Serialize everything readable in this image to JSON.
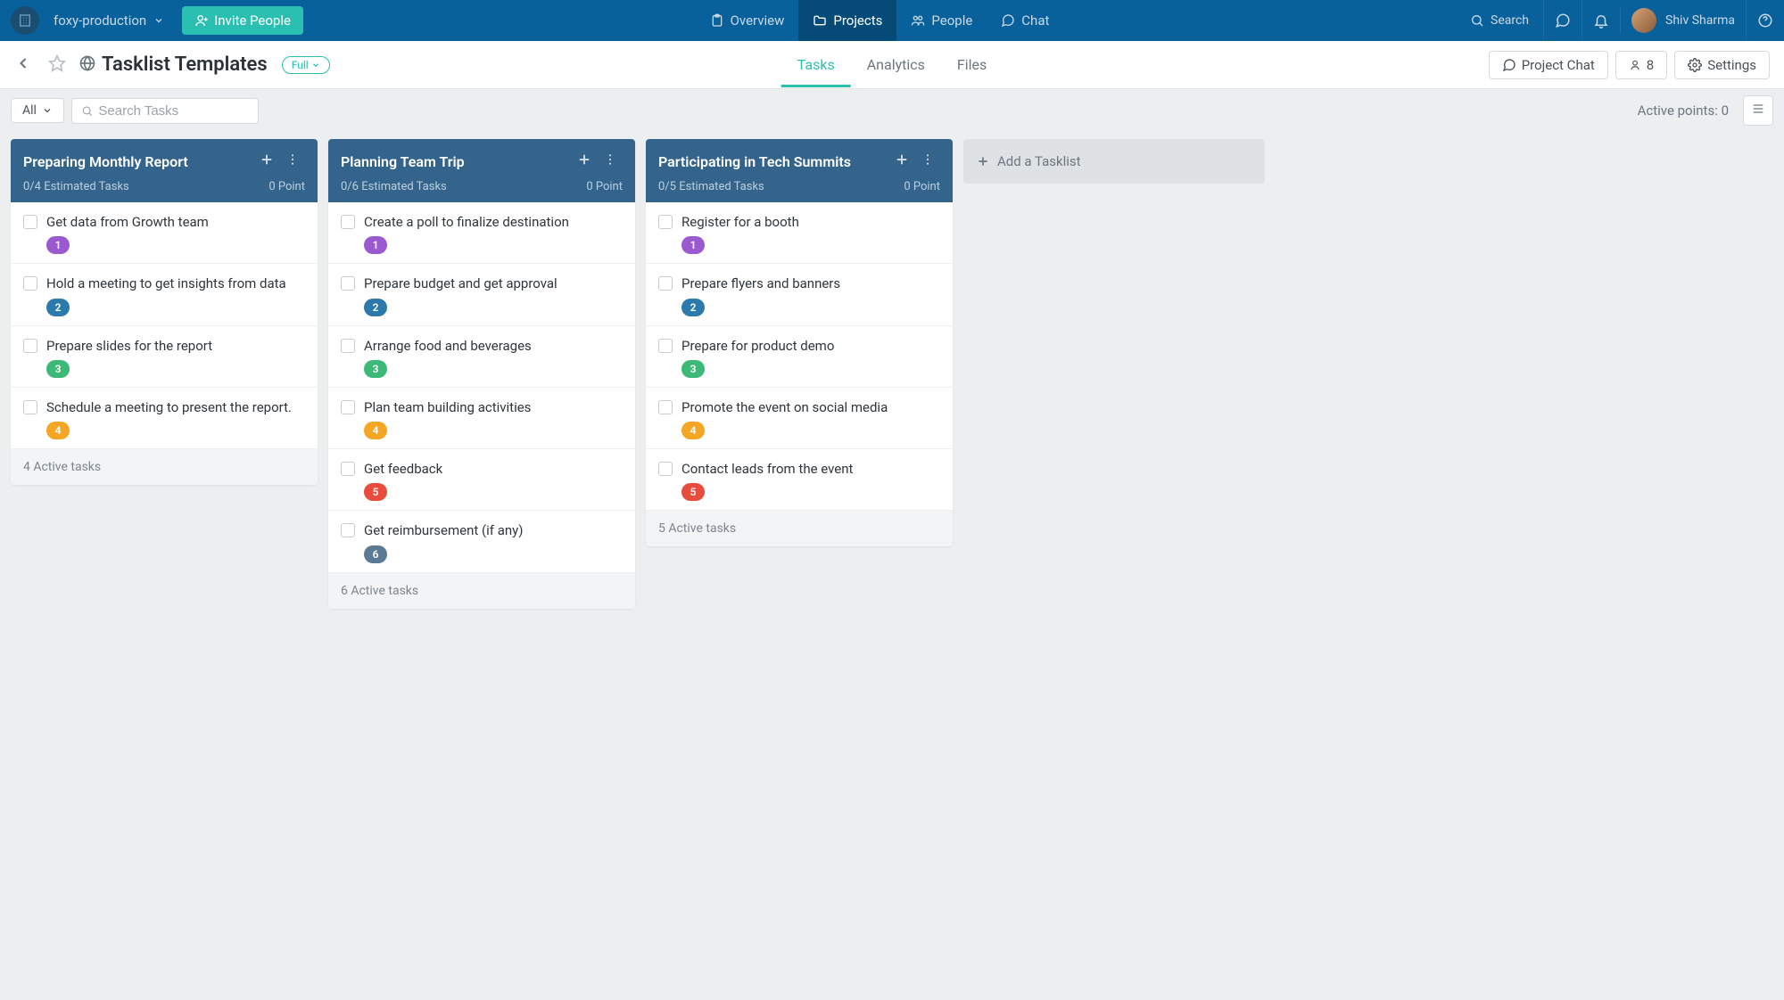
{
  "colors": {
    "topnav": "#09619b",
    "topnav_active": "#064b77",
    "invite": "#2bbfb2",
    "col_header": "#34648b",
    "border": "#d5dade",
    "badge_purple": "#9b59d0",
    "badge_blue": "#2b7aab",
    "badge_green": "#3cb877",
    "badge_orange": "#f5a623",
    "badge_red": "#e74c3c",
    "badge_grey": "#5b7a94"
  },
  "topnav": {
    "workspace": "foxy-production",
    "invite": "Invite People",
    "items": [
      {
        "label": "Overview"
      },
      {
        "label": "Projects",
        "active": true
      },
      {
        "label": "People"
      },
      {
        "label": "Chat"
      }
    ],
    "search": "Search",
    "username": "Shiv Sharma"
  },
  "subheader": {
    "title": "Tasklist Templates",
    "pill": "Full",
    "tabs": [
      {
        "label": "Tasks",
        "active": true
      },
      {
        "label": "Analytics"
      },
      {
        "label": "Files"
      }
    ],
    "project_chat": "Project Chat",
    "members": "8",
    "settings": "Settings"
  },
  "filterbar": {
    "filter": "All",
    "search_placeholder": "Search Tasks",
    "active_points_label": "Active points:",
    "active_points_value": "0"
  },
  "board": {
    "add_tasklist": "Add a Tasklist",
    "columns": [
      {
        "name": "Preparing Monthly Report",
        "estimated": "0/4 Estimated Tasks",
        "points": "0 Point",
        "footer": "4 Active tasks",
        "cards": [
          {
            "title": "Get data from Growth team",
            "badge": "1",
            "color": "#9b59d0"
          },
          {
            "title": "Hold a meeting to get insights from data",
            "badge": "2",
            "color": "#2b7aab"
          },
          {
            "title": "Prepare slides for the report",
            "badge": "3",
            "color": "#3cb877"
          },
          {
            "title": "Schedule a meeting to present the report.",
            "badge": "4",
            "color": "#f5a623"
          }
        ]
      },
      {
        "name": "Planning Team Trip",
        "estimated": "0/6 Estimated Tasks",
        "points": "0 Point",
        "footer": "6 Active tasks",
        "cards": [
          {
            "title": "Create a poll to finalize destination",
            "badge": "1",
            "color": "#9b59d0"
          },
          {
            "title": "Prepare budget and get approval",
            "badge": "2",
            "color": "#2b7aab"
          },
          {
            "title": "Arrange food and beverages",
            "badge": "3",
            "color": "#3cb877"
          },
          {
            "title": "Plan team building activities",
            "badge": "4",
            "color": "#f5a623"
          },
          {
            "title": "Get feedback",
            "badge": "5",
            "color": "#e74c3c"
          },
          {
            "title": "Get reimbursement (if any)",
            "badge": "6",
            "color": "#5b7a94"
          }
        ]
      },
      {
        "name": "Participating in Tech Summits",
        "estimated": "0/5 Estimated Tasks",
        "points": "0 Point",
        "footer": "5 Active tasks",
        "cards": [
          {
            "title": "Register for a booth",
            "badge": "1",
            "color": "#9b59d0"
          },
          {
            "title": "Prepare flyers and banners",
            "badge": "2",
            "color": "#2b7aab"
          },
          {
            "title": "Prepare for product demo",
            "badge": "3",
            "color": "#3cb877"
          },
          {
            "title": "Promote the event on social media",
            "badge": "4",
            "color": "#f5a623"
          },
          {
            "title": "Contact leads from the event",
            "badge": "5",
            "color": "#e74c3c"
          }
        ]
      }
    ]
  }
}
